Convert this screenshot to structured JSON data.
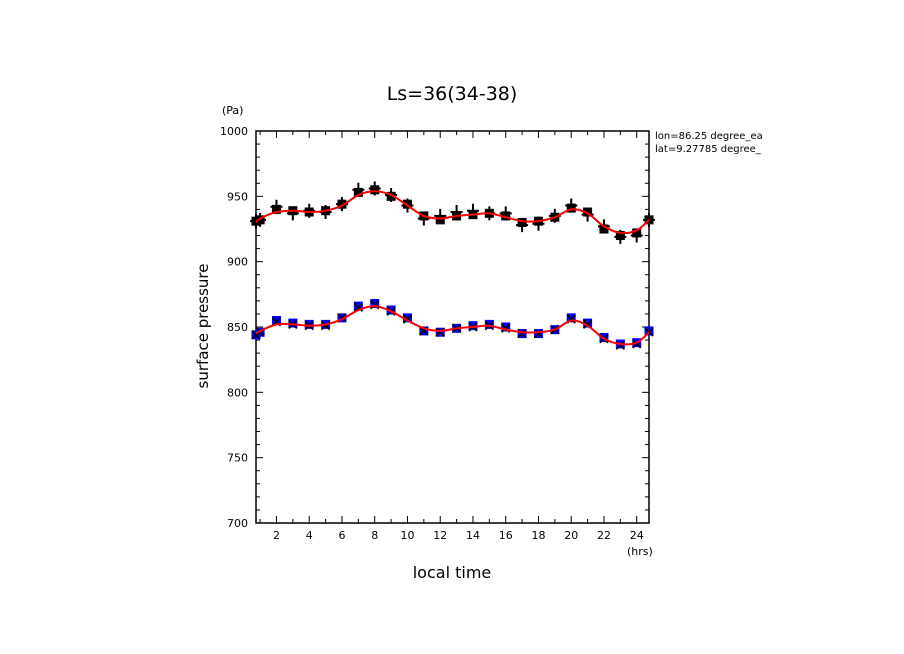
{
  "chart_data": {
    "type": "scatter",
    "title": "Ls=36(34-38)",
    "xlabel": "local time",
    "ylabel": "surface pressure",
    "xunit": "(hrs)",
    "yunit": "(Pa)",
    "xlim": [
      0.75,
      24.75
    ],
    "ylim": [
      700,
      1000
    ],
    "xticks": [
      2,
      4,
      6,
      8,
      10,
      12,
      14,
      16,
      18,
      20,
      22,
      24
    ],
    "yticks": [
      700,
      750,
      800,
      850,
      900,
      950,
      1000
    ],
    "annotations": [
      "lon=86.25 degree_ea",
      "lat=9.27785 degree_"
    ],
    "x": [
      0.75,
      1,
      2,
      3,
      4,
      5,
      6,
      7,
      8,
      9,
      10,
      11,
      12,
      13,
      14,
      15,
      16,
      17,
      18,
      19,
      20,
      21,
      22,
      23,
      24,
      24.75
    ],
    "series": [
      {
        "color": "#000000",
        "marker": "square",
        "values": [
          931,
          932,
          940,
          939,
          938,
          939,
          944,
          953,
          955,
          950,
          944,
          935,
          932,
          935,
          936,
          937,
          935,
          930,
          931,
          934,
          941,
          938,
          925,
          920,
          922,
          932
        ]
      },
      {
        "color": "#000000",
        "marker": "plus",
        "values": [
          931,
          932,
          942,
          937,
          939,
          938,
          944,
          955,
          956,
          951,
          943,
          933,
          935,
          938,
          939,
          937,
          937,
          928,
          929,
          935,
          943,
          936,
          927,
          919,
          920,
          932
        ]
      },
      {
        "color": "#ff0000",
        "marker": "line",
        "values": [
          930,
          933,
          938,
          939,
          938,
          939,
          943,
          951,
          954,
          951,
          943,
          935,
          933,
          935,
          936,
          937,
          934,
          931,
          931,
          934,
          940,
          937,
          927,
          922,
          924,
          932
        ]
      },
      {
        "color": "#0000ff",
        "marker": "square",
        "values": [
          844,
          846,
          855,
          853,
          852,
          852,
          857,
          866,
          868,
          863,
          857,
          847,
          846,
          849,
          851,
          852,
          850,
          845,
          845,
          848,
          857,
          853,
          842,
          837,
          838,
          847
        ]
      },
      {
        "color": "#000000",
        "marker": "cross",
        "values": [
          844,
          846,
          854,
          852,
          851,
          851,
          857,
          865,
          867,
          862,
          856,
          847,
          846,
          849,
          850,
          851,
          849,
          845,
          845,
          848,
          856,
          852,
          841,
          836,
          837,
          846
        ]
      },
      {
        "color": "#ff0000",
        "marker": "line",
        "values": [
          845,
          847,
          852,
          852,
          851,
          852,
          856,
          863,
          866,
          862,
          855,
          849,
          847,
          849,
          850,
          851,
          848,
          846,
          846,
          848,
          855,
          851,
          841,
          837,
          838,
          846
        ]
      }
    ]
  }
}
